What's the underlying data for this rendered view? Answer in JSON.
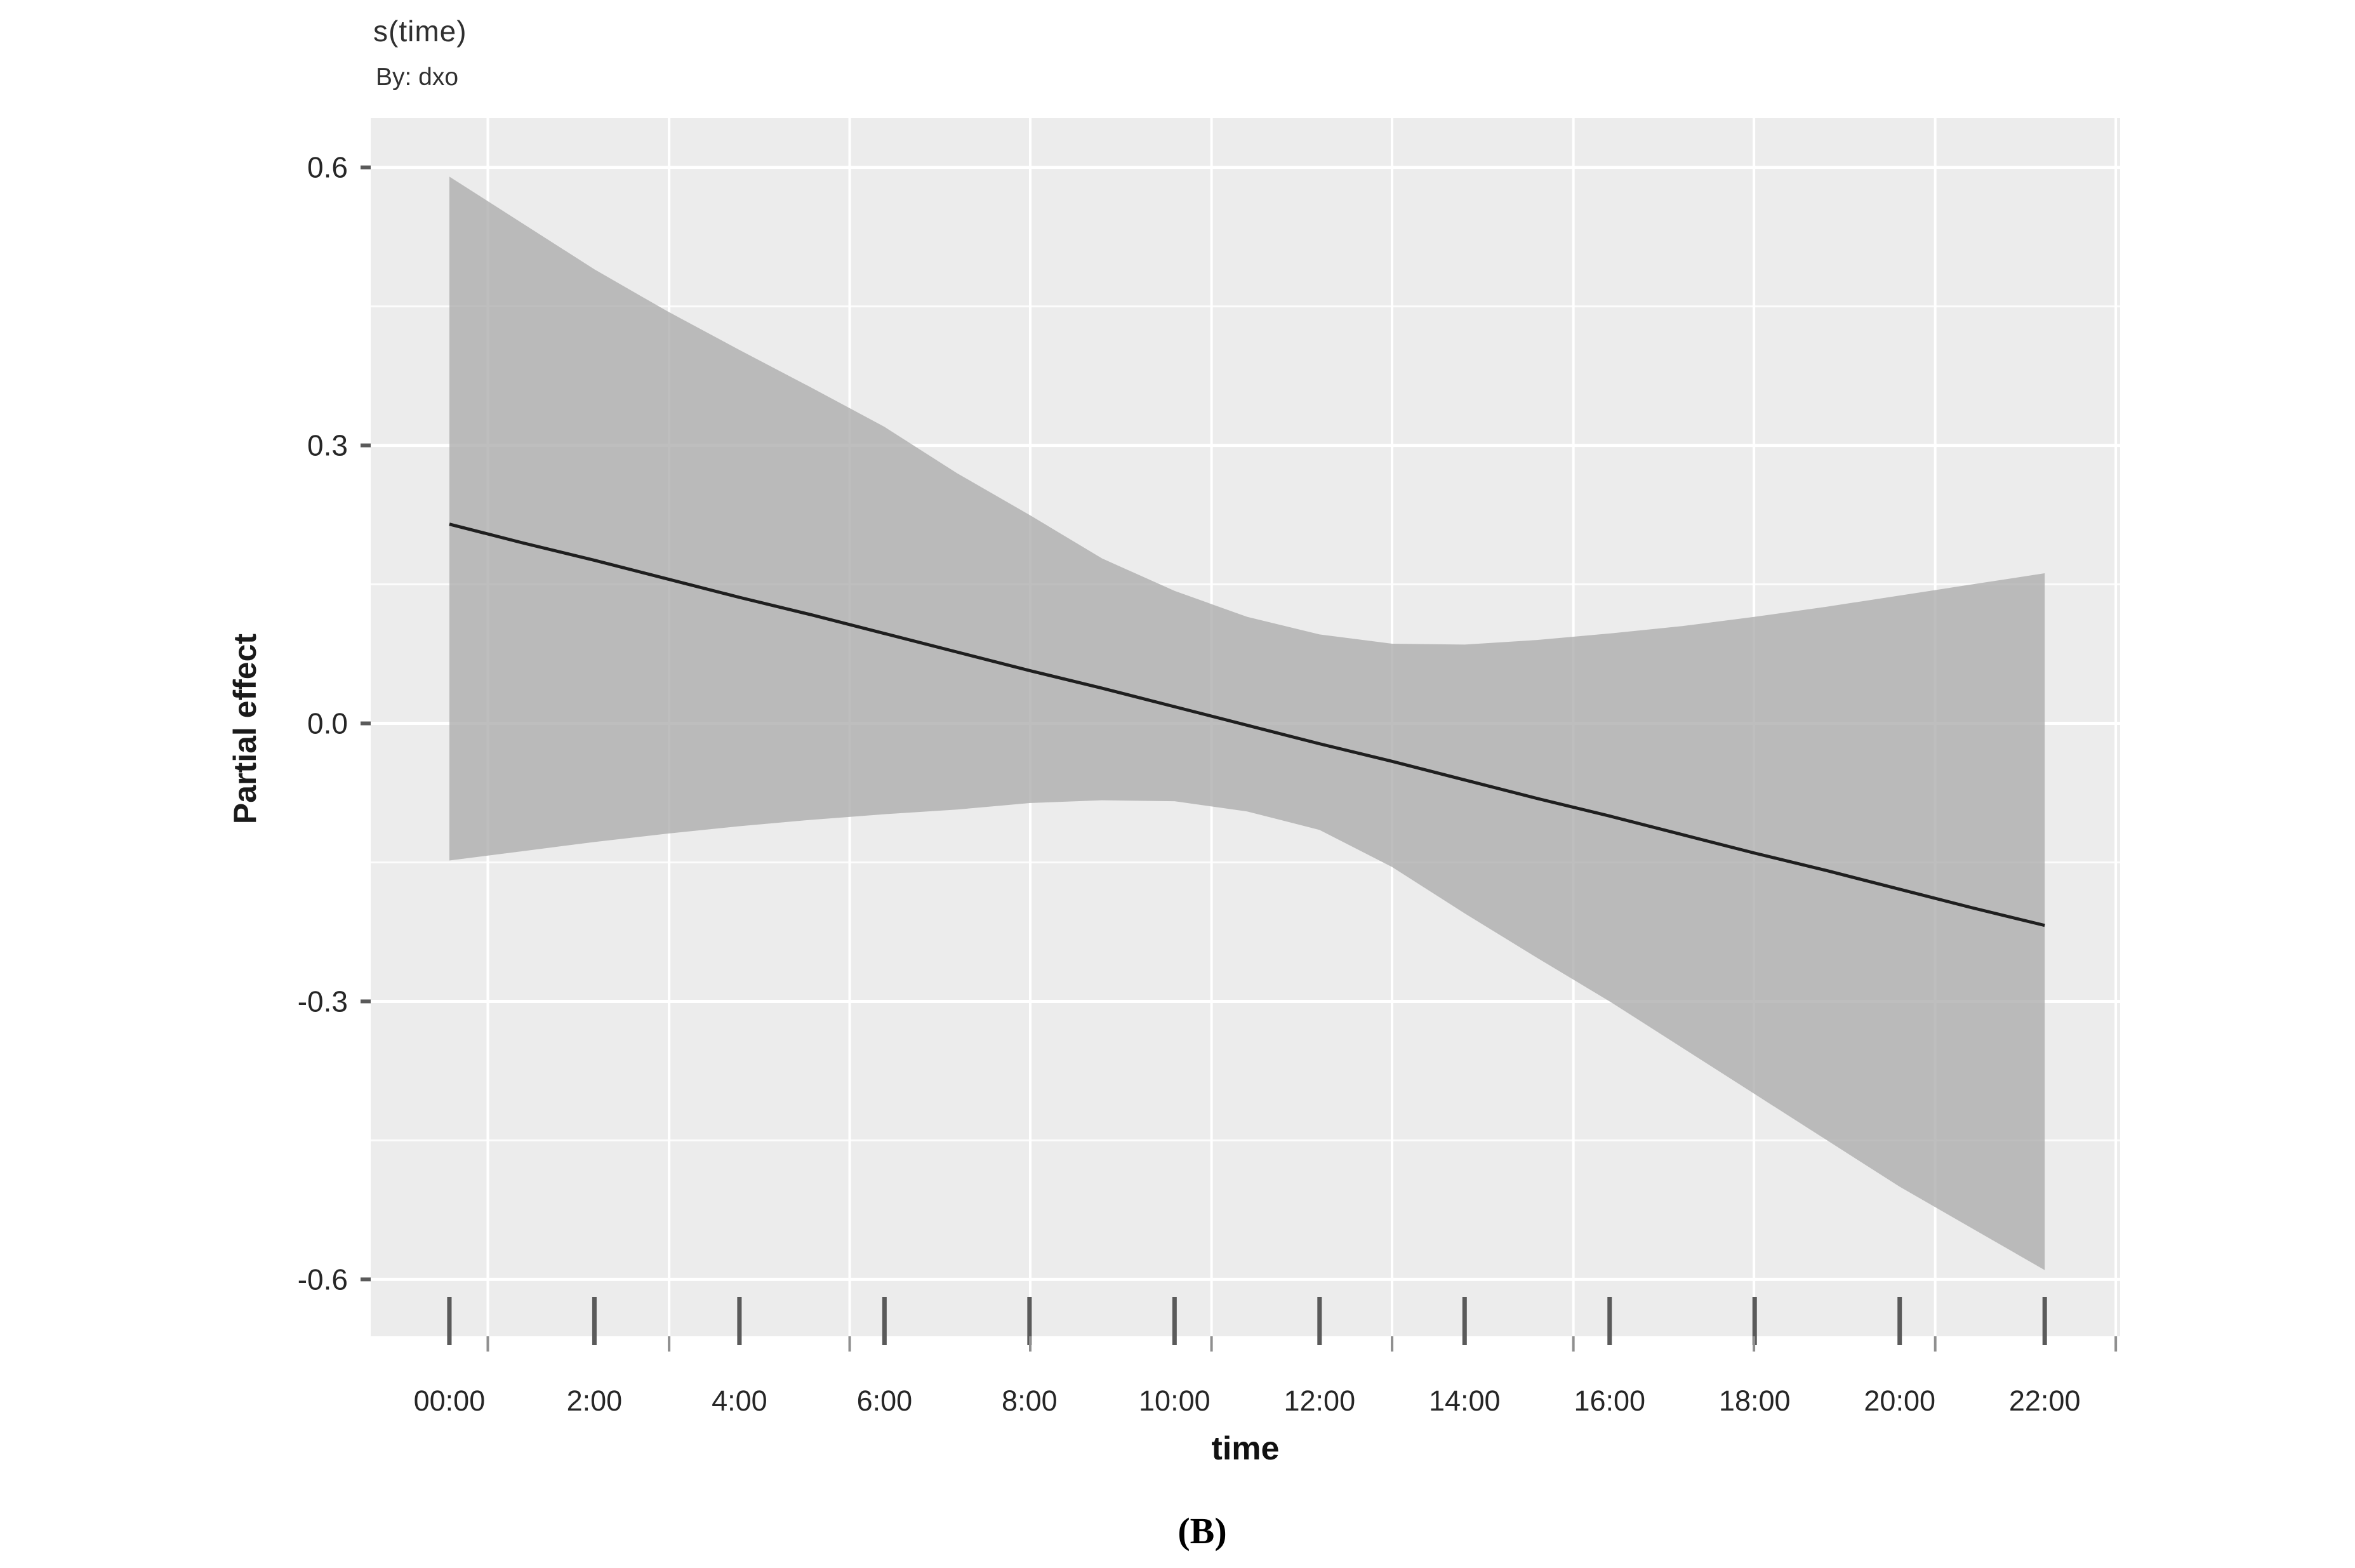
{
  "figure": {
    "title": "s(time)",
    "subtitle": "By: dxo",
    "ylabel": "Partial effect",
    "xlabel": "time",
    "caption": "(B)"
  },
  "chart_data": {
    "type": "area",
    "title": "s(time)",
    "subtitle": "By: dxo",
    "xlabel": "time",
    "ylabel": "Partial effect",
    "x_unit": "hours",
    "x": [
      0,
      1,
      2,
      3,
      4,
      5,
      6,
      7,
      8,
      9,
      10,
      11,
      12,
      13,
      14,
      15,
      16,
      17,
      18,
      19,
      20,
      21,
      22
    ],
    "series": [
      {
        "name": "smooth_estimate",
        "values": [
          0.215,
          0.195,
          0.176,
          0.156,
          0.136,
          0.117,
          0.097,
          0.077,
          0.057,
          0.038,
          0.018,
          -0.002,
          -0.022,
          -0.041,
          -0.061,
          -0.081,
          -0.1,
          -0.12,
          -0.14,
          -0.159,
          -0.179,
          -0.199,
          -0.218
        ]
      },
      {
        "name": "ci_upper",
        "values": [
          0.59,
          0.54,
          0.49,
          0.445,
          0.403,
          0.362,
          0.32,
          0.27,
          0.225,
          0.178,
          0.143,
          0.115,
          0.096,
          0.086,
          0.085,
          0.09,
          0.097,
          0.105,
          0.115,
          0.126,
          0.138,
          0.15,
          0.162
        ]
      },
      {
        "name": "ci_lower",
        "values": [
          -0.148,
          -0.138,
          -0.128,
          -0.119,
          -0.111,
          -0.104,
          -0.098,
          -0.093,
          -0.086,
          -0.083,
          -0.084,
          -0.095,
          -0.115,
          -0.155,
          -0.205,
          -0.253,
          -0.3,
          -0.35,
          -0.4,
          -0.45,
          -0.5,
          -0.545,
          -0.59
        ]
      }
    ],
    "x_tick_hours": [
      0,
      2,
      4,
      6,
      8,
      10,
      12,
      14,
      16,
      18,
      20,
      22
    ],
    "x_tick_labels": [
      "00:00",
      "2:00",
      "4:00",
      "6:00",
      "8:00",
      "10:00",
      "12:00",
      "14:00",
      "16:00",
      "18:00",
      "20:00",
      "22:00"
    ],
    "y_tick_values": [
      0.6,
      0.3,
      0.0,
      -0.3,
      -0.6
    ],
    "y_tick_labels": [
      "0.6",
      "0.3",
      "0.0",
      "-0.3",
      "-0.6"
    ],
    "y_minor_values": [
      0.45,
      0.15,
      -0.15,
      -0.45
    ],
    "x_grid_hours": [
      0.53,
      3.03,
      5.52,
      8.01,
      10.51,
      13.0,
      15.5,
      17.99,
      20.49,
      22.98
    ],
    "xlim": [
      -1.085,
      23.04
    ],
    "ylim": [
      -0.6614,
      0.6532
    ],
    "grid": true,
    "legend": "none",
    "colors": {
      "panel_background": "#ececec",
      "confidence_band": "#aeaeae",
      "gridline": "#ffffff",
      "smooth_line": "#1f1f1f",
      "major_tick": "#5a5a5a",
      "minor_tick": "#8f8f8f",
      "tick_text": "#262626"
    }
  }
}
